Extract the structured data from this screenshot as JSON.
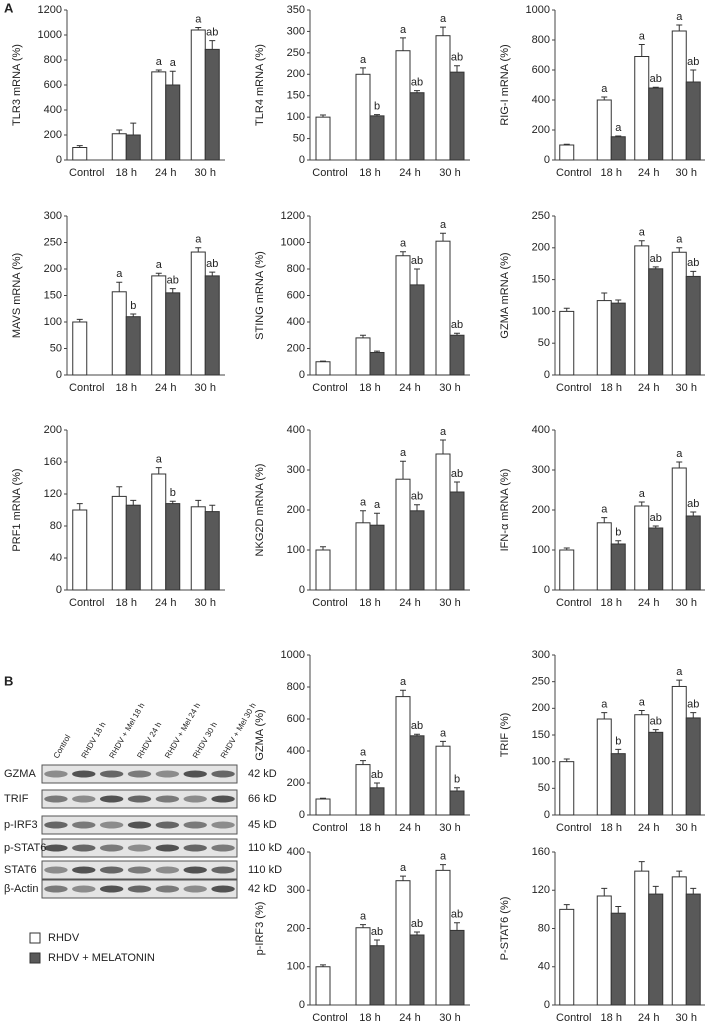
{
  "panel_labels": [
    "A",
    "B"
  ],
  "legend": [
    {
      "name": "RHDV",
      "color": "#ffffff"
    },
    {
      "name": "RHDV + MELATONIN",
      "color": "#595959"
    }
  ],
  "blot": {
    "lanes": [
      "Control",
      "RHDV 18 h",
      "RHDV + Mel 18 h",
      "RHDV 24 h",
      "RHDV + Mel 24 h",
      "RHDV 30 h",
      "RHDV + Mel 30 h"
    ],
    "rows": [
      {
        "label": "GZMA",
        "size": "42 kD"
      },
      {
        "label": "TRIF",
        "size": "66 kD"
      },
      {
        "label": "p-IRF3",
        "size": "45 kD"
      },
      {
        "label": "p-STAT6",
        "size": "110 kD"
      },
      {
        "label": "STAT6",
        "size": "110 kD"
      },
      {
        "label": "β-Actin",
        "size": "42 kD"
      }
    ]
  },
  "chart_data": [
    {
      "type": "bar",
      "y_label": "TLR3 mRNA (%)",
      "categories": [
        "Control",
        "18 h",
        "24 h",
        "30 h"
      ],
      "ylim": [
        0,
        1200
      ],
      "yticks": [
        0,
        200,
        400,
        600,
        800,
        1000,
        1200
      ],
      "series": [
        {
          "color": "#ffffff",
          "values": [
            100,
            210,
            705,
            1040
          ],
          "errors": [
            15,
            30,
            15,
            20
          ],
          "letters": [
            null,
            null,
            "a",
            "a"
          ]
        },
        {
          "color": "#595959",
          "values": [
            null,
            200,
            600,
            885
          ],
          "errors": [
            null,
            95,
            110,
            70
          ],
          "letters": [
            null,
            null,
            "a",
            "ab"
          ]
        }
      ]
    },
    {
      "type": "bar",
      "y_label": "TLR4 mRNA (%)",
      "categories": [
        "Control",
        "18 h",
        "24 h",
        "30 h"
      ],
      "ylim": [
        0,
        350
      ],
      "yticks": [
        0,
        50,
        100,
        150,
        200,
        250,
        300,
        350
      ],
      "series": [
        {
          "color": "#ffffff",
          "values": [
            100,
            200,
            255,
            290
          ],
          "errors": [
            5,
            15,
            30,
            20
          ],
          "letters": [
            null,
            "a",
            "a",
            "a"
          ]
        },
        {
          "color": "#595959",
          "values": [
            null,
            103,
            157,
            205
          ],
          "errors": [
            null,
            3,
            5,
            15
          ],
          "letters": [
            null,
            "b",
            "ab",
            "ab"
          ]
        }
      ]
    },
    {
      "type": "bar",
      "y_label": "RIG-I mRNA (%)",
      "categories": [
        "Control",
        "18 h",
        "24 h",
        "30 h"
      ],
      "ylim": [
        0,
        1000
      ],
      "yticks": [
        0,
        200,
        400,
        600,
        800,
        1000
      ],
      "series": [
        {
          "color": "#ffffff",
          "values": [
            100,
            400,
            690,
            860
          ],
          "errors": [
            5,
            20,
            80,
            40
          ],
          "letters": [
            null,
            "a",
            "a",
            "a"
          ]
        },
        {
          "color": "#595959",
          "values": [
            null,
            155,
            480,
            520
          ],
          "errors": [
            null,
            5,
            5,
            80
          ],
          "letters": [
            null,
            "a",
            "ab",
            "ab"
          ]
        }
      ]
    },
    {
      "type": "bar",
      "y_label": "MAVS mRNA (%)",
      "categories": [
        "Control",
        "18 h",
        "24 h",
        "30 h"
      ],
      "ylim": [
        0,
        300
      ],
      "yticks": [
        0,
        50,
        100,
        150,
        200,
        250,
        300
      ],
      "series": [
        {
          "color": "#ffffff",
          "values": [
            100,
            157,
            187,
            232
          ],
          "errors": [
            5,
            18,
            5,
            8
          ],
          "letters": [
            null,
            "a",
            "a",
            "a"
          ]
        },
        {
          "color": "#595959",
          "values": [
            null,
            110,
            155,
            187
          ],
          "errors": [
            null,
            5,
            8,
            7
          ],
          "letters": [
            null,
            "b",
            "ab",
            "ab"
          ]
        }
      ]
    },
    {
      "type": "bar",
      "y_label": "STING mRNA (%)",
      "categories": [
        "Control",
        "18 h",
        "24 h",
        "30 h"
      ],
      "ylim": [
        0,
        1200
      ],
      "yticks": [
        0,
        200,
        400,
        600,
        800,
        1000,
        1200
      ],
      "series": [
        {
          "color": "#ffffff",
          "values": [
            100,
            280,
            900,
            1010
          ],
          "errors": [
            5,
            20,
            30,
            60
          ],
          "letters": [
            null,
            null,
            "a",
            "a"
          ]
        },
        {
          "color": "#595959",
          "values": [
            null,
            170,
            680,
            300
          ],
          "errors": [
            null,
            10,
            120,
            15
          ],
          "letters": [
            null,
            null,
            "ab",
            "ab"
          ]
        }
      ]
    },
    {
      "type": "bar",
      "y_label": "GZMA mRNA (%)",
      "categories": [
        "Control",
        "18 h",
        "24 h",
        "30 h"
      ],
      "ylim": [
        0,
        250
      ],
      "yticks": [
        0,
        50,
        100,
        150,
        200,
        250
      ],
      "series": [
        {
          "color": "#ffffff",
          "values": [
            100,
            117,
            203,
            193
          ],
          "errors": [
            5,
            12,
            8,
            7
          ],
          "letters": [
            null,
            null,
            "a",
            "a"
          ]
        },
        {
          "color": "#595959",
          "values": [
            null,
            113,
            167,
            155
          ],
          "errors": [
            null,
            5,
            3,
            8
          ],
          "letters": [
            null,
            null,
            "ab",
            "ab"
          ]
        }
      ]
    },
    {
      "type": "bar",
      "y_label": "PRF1 mRNA (%)",
      "categories": [
        "Control",
        "18 h",
        "24 h",
        "30 h"
      ],
      "ylim": [
        0,
        200
      ],
      "yticks": [
        0,
        40,
        80,
        120,
        160,
        200
      ],
      "series": [
        {
          "color": "#ffffff",
          "values": [
            100,
            117,
            145,
            104
          ],
          "errors": [
            8,
            12,
            8,
            8
          ],
          "letters": [
            null,
            null,
            "a",
            null
          ]
        },
        {
          "color": "#595959",
          "values": [
            null,
            106,
            108,
            98
          ],
          "errors": [
            null,
            6,
            3,
            8
          ],
          "letters": [
            null,
            null,
            "b",
            null
          ]
        }
      ]
    },
    {
      "type": "bar",
      "y_label": "NKG2D mRNA (%)",
      "categories": [
        "Control",
        "18 h",
        "24 h",
        "30 h"
      ],
      "ylim": [
        0,
        400
      ],
      "yticks": [
        0,
        100,
        200,
        300,
        400
      ],
      "series": [
        {
          "color": "#ffffff",
          "values": [
            100,
            168,
            277,
            340
          ],
          "errors": [
            8,
            30,
            45,
            35
          ],
          "letters": [
            null,
            "a",
            "a",
            "a"
          ]
        },
        {
          "color": "#595959",
          "values": [
            null,
            162,
            198,
            245
          ],
          "errors": [
            null,
            30,
            15,
            25
          ],
          "letters": [
            null,
            "a",
            "ab",
            "ab"
          ]
        }
      ]
    },
    {
      "type": "bar",
      "y_label": "IFN-α  mRNA (%)",
      "categories": [
        "Control",
        "18 h",
        "24 h",
        "30 h"
      ],
      "ylim": [
        0,
        400
      ],
      "yticks": [
        0,
        100,
        200,
        300,
        400
      ],
      "series": [
        {
          "color": "#ffffff",
          "values": [
            100,
            168,
            210,
            305
          ],
          "errors": [
            5,
            13,
            10,
            15
          ],
          "letters": [
            null,
            "a",
            "a",
            "a"
          ]
        },
        {
          "color": "#595959",
          "values": [
            null,
            115,
            155,
            185
          ],
          "errors": [
            null,
            8,
            5,
            10
          ],
          "letters": [
            null,
            "b",
            "ab",
            "ab"
          ]
        }
      ]
    },
    {
      "type": "bar",
      "y_label": "GZMA (%)",
      "categories": [
        "Control",
        "18 h",
        "24 h",
        "30 h"
      ],
      "ylim": [
        0,
        1000
      ],
      "yticks": [
        0,
        200,
        400,
        600,
        800,
        1000
      ],
      "series": [
        {
          "color": "#ffffff",
          "values": [
            100,
            315,
            740,
            430
          ],
          "errors": [
            5,
            25,
            40,
            30
          ],
          "letters": [
            null,
            "a",
            "a",
            "a"
          ]
        },
        {
          "color": "#595959",
          "values": [
            null,
            170,
            495,
            150
          ],
          "errors": [
            null,
            30,
            10,
            20
          ],
          "letters": [
            null,
            "ab",
            "ab",
            "b"
          ]
        }
      ]
    },
    {
      "type": "bar",
      "y_label": "TRIF (%)",
      "categories": [
        "Control",
        "18 h",
        "24 h",
        "30 h"
      ],
      "ylim": [
        0,
        300
      ],
      "yticks": [
        0,
        50,
        100,
        150,
        200,
        250,
        300
      ],
      "series": [
        {
          "color": "#ffffff",
          "values": [
            100,
            180,
            188,
            241
          ],
          "errors": [
            5,
            12,
            8,
            12
          ],
          "letters": [
            null,
            "a",
            "a",
            "a"
          ]
        },
        {
          "color": "#595959",
          "values": [
            null,
            115,
            155,
            182
          ],
          "errors": [
            null,
            8,
            5,
            10
          ],
          "letters": [
            null,
            "b",
            "ab",
            "ab"
          ]
        }
      ]
    },
    {
      "type": "bar",
      "y_label": "p-IRF3 (%)",
      "categories": [
        "Control",
        "18 h",
        "24 h",
        "30 h"
      ],
      "ylim": [
        0,
        400
      ],
      "yticks": [
        0,
        100,
        200,
        300,
        400
      ],
      "series": [
        {
          "color": "#ffffff",
          "values": [
            100,
            202,
            325,
            352
          ],
          "errors": [
            5,
            8,
            12,
            15
          ],
          "letters": [
            null,
            "a",
            "a",
            "a"
          ]
        },
        {
          "color": "#595959",
          "values": [
            null,
            155,
            183,
            195
          ],
          "errors": [
            null,
            15,
            8,
            20
          ],
          "letters": [
            null,
            "ab",
            "ab",
            "ab"
          ]
        }
      ]
    },
    {
      "type": "bar",
      "y_label": "P-STAT6 (%)",
      "categories": [
        "Control",
        "18 h",
        "24 h",
        "30 h"
      ],
      "ylim": [
        0,
        160
      ],
      "yticks": [
        0,
        40,
        80,
        120,
        160
      ],
      "series": [
        {
          "color": "#ffffff",
          "values": [
            100,
            114,
            140,
            134
          ],
          "errors": [
            5,
            8,
            10,
            6
          ]
        },
        {
          "color": "#595959",
          "values": [
            null,
            96,
            116,
            116
          ],
          "errors": [
            null,
            7,
            8,
            6
          ]
        }
      ]
    }
  ]
}
